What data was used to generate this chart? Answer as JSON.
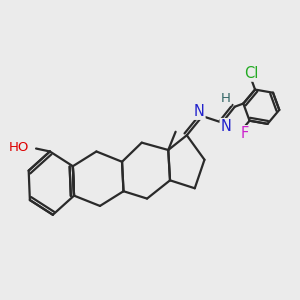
{
  "bg_color": "#ebebeb",
  "bond_color": "#2a2a2a",
  "bond_lw": 1.6,
  "colors": {
    "O": "#dd0000",
    "N": "#2222cc",
    "Cl": "#22aa22",
    "F": "#cc22cc",
    "H": "#336666"
  },
  "label_fontsize": 10.5,
  "small_label_fontsize": 9.5
}
